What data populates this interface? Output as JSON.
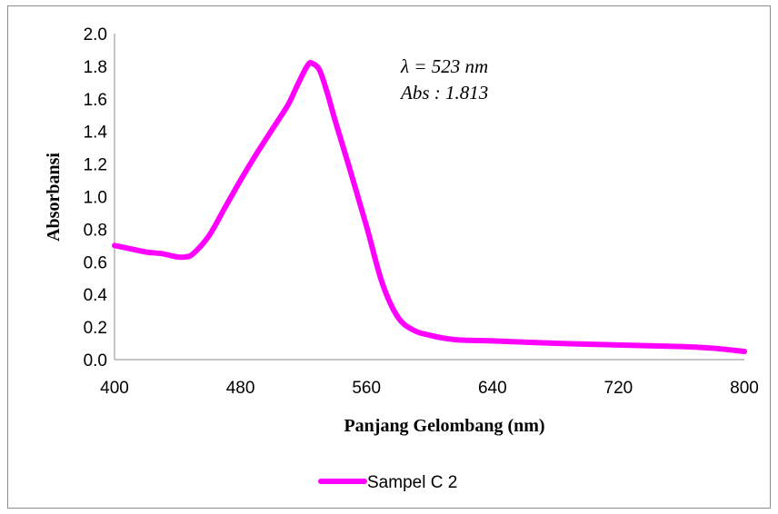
{
  "chart_data": {
    "type": "line",
    "xlabel": "Panjang Gelombang (nm)",
    "ylabel": "Absorbansi",
    "xlim": [
      400,
      800
    ],
    "ylim": [
      0,
      2.0
    ],
    "x_ticks": [
      "400",
      "480",
      "560",
      "640",
      "720",
      "800"
    ],
    "y_ticks": [
      "0.0",
      "0.2",
      "0.4",
      "0.6",
      "0.8",
      "1.0",
      "1.2",
      "1.4",
      "1.6",
      "1.8",
      "2.0"
    ],
    "grid": false,
    "legend_position": "bottom",
    "annotations": [
      "λ = 523 nm",
      "Abs : 1.813"
    ],
    "series": [
      {
        "name": "Sampel C 2",
        "color": "#ff00ff",
        "x": [
          400,
          410,
          420,
          430,
          440,
          445,
          450,
          460,
          470,
          480,
          490,
          500,
          510,
          515,
          520,
          523,
          525,
          530,
          535,
          540,
          550,
          560,
          570,
          580,
          590,
          600,
          610,
          620,
          640,
          680,
          720,
          760,
          780,
          800
        ],
        "y": [
          0.7,
          0.68,
          0.66,
          0.65,
          0.63,
          0.63,
          0.65,
          0.76,
          0.93,
          1.1,
          1.26,
          1.41,
          1.56,
          1.66,
          1.76,
          1.81,
          1.82,
          1.78,
          1.64,
          1.47,
          1.15,
          0.82,
          0.47,
          0.26,
          0.18,
          0.15,
          0.13,
          0.12,
          0.115,
          0.1,
          0.09,
          0.08,
          0.07,
          0.05
        ]
      }
    ]
  }
}
